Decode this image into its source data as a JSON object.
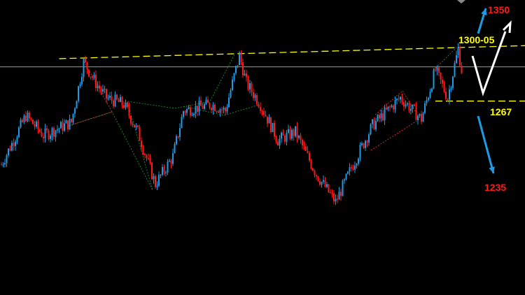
{
  "chart_data": {
    "type": "candlestick",
    "ylim": [
      1148,
      1329
    ],
    "grid": false,
    "colors": {
      "up": "#1e9be6",
      "down": "#ff1a1a",
      "background": "#000000",
      "level": "#ffff00",
      "reference_line": "#9a9a9a",
      "projection_up": "#ffffff",
      "arrow": "#1e9be6"
    },
    "price_path": [
      [
        0,
        1228
      ],
      [
        14,
        1258
      ],
      [
        24,
        1246
      ],
      [
        40,
        1254
      ],
      [
        47,
        1291
      ],
      [
        54,
        1278
      ],
      [
        60,
        1269
      ],
      [
        70,
        1265
      ],
      [
        78,
        1248
      ],
      [
        88,
        1216
      ],
      [
        98,
        1233
      ],
      [
        104,
        1261
      ],
      [
        120,
        1265
      ],
      [
        128,
        1261
      ],
      [
        136,
        1295
      ],
      [
        140,
        1278
      ],
      [
        148,
        1265
      ],
      [
        158,
        1243
      ],
      [
        168,
        1248
      ],
      [
        180,
        1222
      ],
      [
        191,
        1205
      ],
      [
        200,
        1226
      ],
      [
        212,
        1252
      ],
      [
        228,
        1269
      ],
      [
        240,
        1256
      ],
      [
        248,
        1286
      ],
      [
        255,
        1269
      ],
      [
        261,
        1299
      ],
      [
        263,
        1286
      ]
    ],
    "reference_line": 1288,
    "resistance_trendline": [
      [
        33,
        1293
      ],
      [
        300,
        1301
      ]
    ],
    "support_level": 1267,
    "annotations": [
      {
        "text": "1350",
        "color": "#ff1a1a"
      },
      {
        "text": "1300-05",
        "color": "#ffff00"
      },
      {
        "text": "1267",
        "color": "#ffff00"
      },
      {
        "text": "1235",
        "color": "#ff1a1a"
      }
    ]
  }
}
